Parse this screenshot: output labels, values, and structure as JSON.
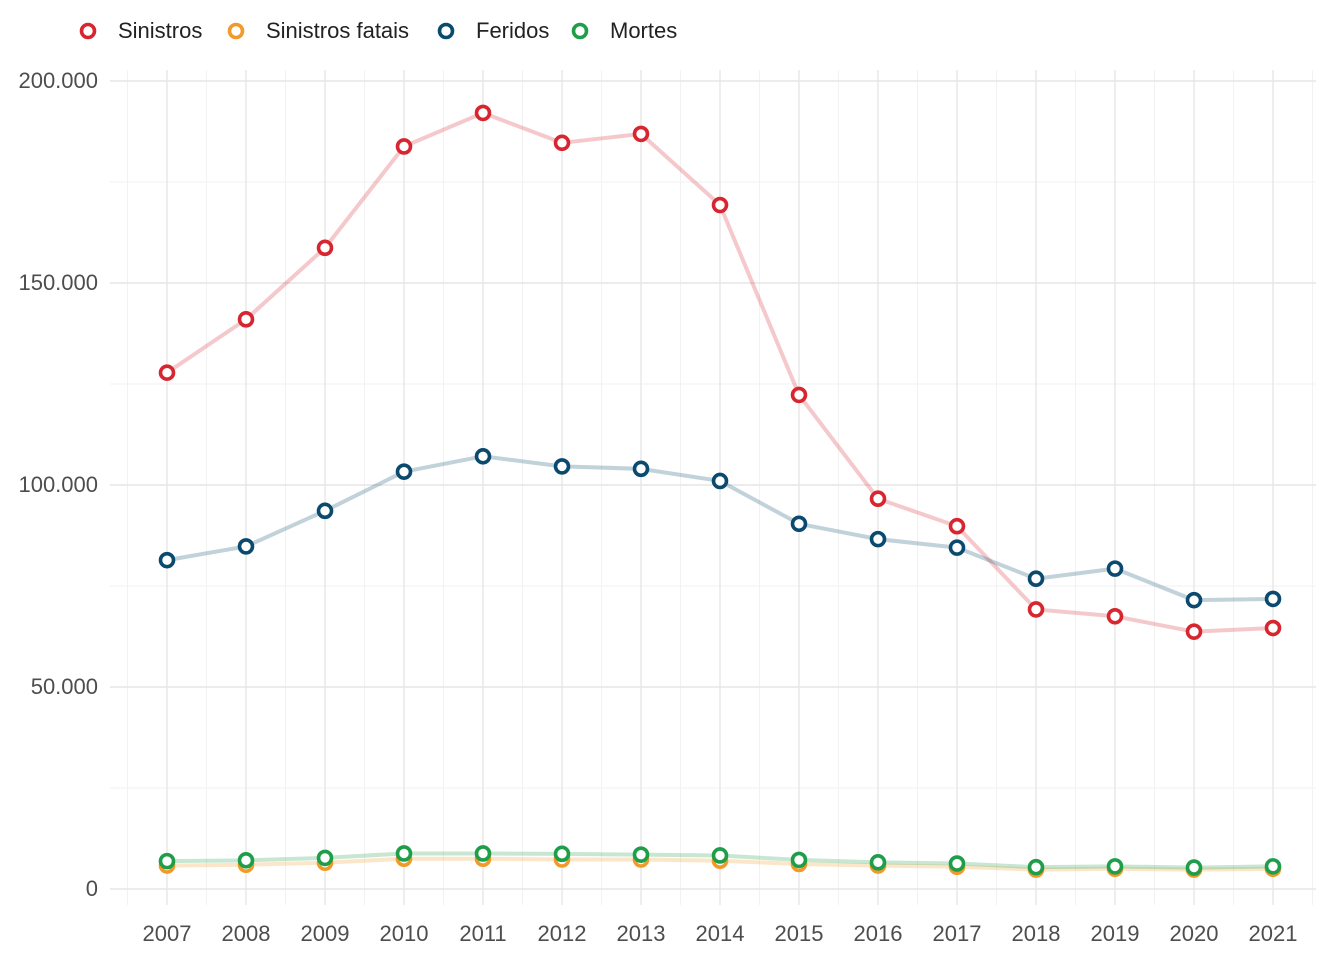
{
  "chart_data": {
    "type": "line",
    "title": "",
    "xlabel": "",
    "ylabel": "",
    "x": [
      "2007",
      "2008",
      "2009",
      "2010",
      "2011",
      "2012",
      "2013",
      "2014",
      "2015",
      "2016",
      "2017",
      "2018",
      "2019",
      "2020",
      "2021"
    ],
    "ylim": [
      0,
      200000
    ],
    "yticks": [
      0,
      50000,
      100000,
      150000,
      200000
    ],
    "ytick_labels": [
      "0",
      "50.000",
      "100.000",
      "150.000",
      "200.000"
    ],
    "grid": true,
    "legend_position": "top-left",
    "series": [
      {
        "name": "Sinistros",
        "color": "#d7262f",
        "values": [
          127800,
          141000,
          158700,
          183800,
          192100,
          184700,
          186900,
          169300,
          122300,
          96600,
          89800,
          69200,
          67500,
          63700,
          64600
        ]
      },
      {
        "name": "Sinistros fatais",
        "color": "#f29a27",
        "values": [
          5800,
          6000,
          6500,
          7500,
          7500,
          7300,
          7300,
          7000,
          6200,
          5800,
          5500,
          4800,
          5000,
          4800,
          5000
        ]
      },
      {
        "name": "Feridos",
        "color": "#0b4a6f",
        "values": [
          81400,
          84800,
          93600,
          103300,
          107100,
          104600,
          104000,
          101000,
          90400,
          86600,
          84500,
          76800,
          79300,
          71500,
          71800
        ]
      },
      {
        "name": "Mortes",
        "color": "#1f9e4a",
        "values": [
          6900,
          7100,
          7700,
          8800,
          8800,
          8700,
          8500,
          8300,
          7200,
          6600,
          6300,
          5400,
          5600,
          5300,
          5600
        ]
      }
    ]
  }
}
